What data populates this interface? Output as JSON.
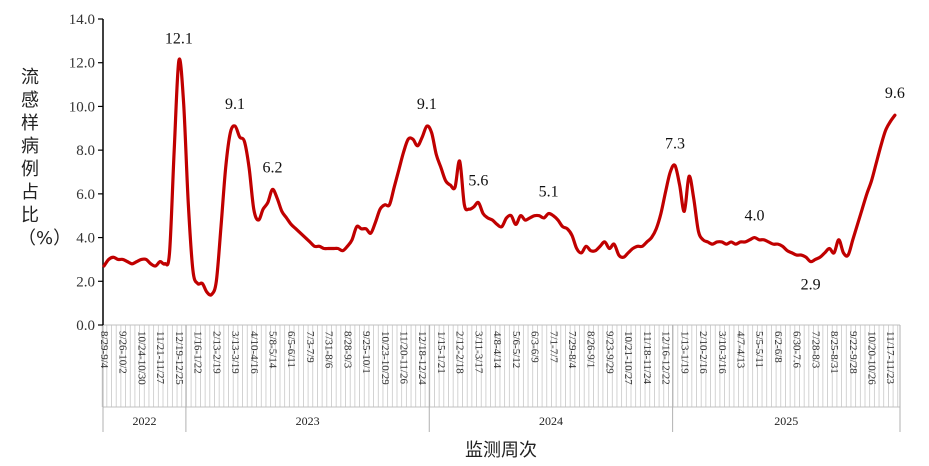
{
  "chart_data": {
    "type": "line",
    "title": "",
    "xlabel": "监测周次",
    "ylabel": "流感样病例占比（%）",
    "ylim": [
      0,
      14
    ],
    "yticks": [
      "0.0",
      "2.0",
      "4.0",
      "6.0",
      "8.0",
      "10.0",
      "12.0",
      "14.0"
    ],
    "grid": false,
    "line_color": "#C00000",
    "x_tick_labels": [
      "8/29-9/4",
      "9/26-10/2",
      "10/24-10/30",
      "11/21-11/27",
      "12/19-12/25",
      "1/16-1/22",
      "2/13-2/19",
      "3/13-3/19",
      "4/10-4/16",
      "5/8-5/14",
      "6/5-6/11",
      "7/3-7/9",
      "7/31-8/6",
      "8/28-9/3",
      "9/25-10/1",
      "10/23-10/29",
      "11/20-11/26",
      "12/18-12/24",
      "1/15-1/21",
      "2/12-2/18",
      "3/11-3/17",
      "4/8-4/14",
      "5/6-5/12",
      "6/3-6/9",
      "7/1-7/7",
      "7/29-8/4",
      "8/26-9/1",
      "9/23-9/29",
      "10/21-10/27",
      "11/18-11/24",
      "12/16-12/22",
      "1/13-1/19",
      "2/10-2/16",
      "3/10-3/16",
      "4/7-4/13",
      "5/5-5/11",
      "6/2-6/8",
      "6/30-7.6",
      "7/28-8/3",
      "8/25-8/31",
      "9/22-9/28",
      "10/20-10/26",
      "11/17-11/23"
    ],
    "years": [
      {
        "label": "2022",
        "start_week": 0,
        "end_week": 17
      },
      {
        "label": "2023",
        "start_week": 18,
        "end_week": 69
      },
      {
        "label": "2024",
        "start_week": 70,
        "end_week": 121
      },
      {
        "label": "2025",
        "start_week": 122,
        "end_week": 169
      }
    ],
    "values": [
      2.7,
      3.0,
      3.1,
      3.0,
      3.0,
      2.9,
      2.8,
      2.9,
      3.0,
      3.0,
      2.8,
      2.7,
      2.9,
      2.8,
      3.3,
      8.0,
      12.1,
      10.2,
      5.6,
      2.5,
      1.9,
      1.9,
      1.5,
      1.4,
      2.0,
      4.5,
      7.2,
      8.8,
      9.1,
      8.6,
      8.4,
      7.2,
      5.3,
      4.8,
      5.3,
      5.6,
      6.2,
      5.8,
      5.2,
      4.9,
      4.6,
      4.4,
      4.2,
      4.0,
      3.8,
      3.6,
      3.6,
      3.5,
      3.5,
      3.5,
      3.5,
      3.4,
      3.6,
      3.9,
      4.5,
      4.4,
      4.4,
      4.2,
      4.7,
      5.3,
      5.5,
      5.5,
      6.3,
      7.1,
      7.9,
      8.5,
      8.5,
      8.2,
      8.6,
      9.1,
      8.8,
      7.8,
      7.2,
      6.6,
      6.4,
      6.3,
      7.5,
      5.5,
      5.3,
      5.4,
      5.6,
      5.1,
      4.9,
      4.8,
      4.6,
      4.5,
      4.9,
      5.0,
      4.6,
      5.0,
      4.8,
      4.9,
      5.0,
      5.0,
      4.9,
      5.1,
      5.0,
      4.8,
      4.5,
      4.4,
      4.1,
      3.5,
      3.3,
      3.6,
      3.4,
      3.4,
      3.6,
      3.8,
      3.5,
      3.7,
      3.2,
      3.1,
      3.3,
      3.5,
      3.6,
      3.6,
      3.8,
      4.0,
      4.4,
      5.1,
      6.1,
      7.0,
      7.3,
      6.4,
      5.2,
      6.8,
      5.8,
      4.3,
      3.9,
      3.8,
      3.7,
      3.8,
      3.8,
      3.7,
      3.8,
      3.7,
      3.8,
      3.8,
      3.9,
      4.0,
      3.9,
      3.9,
      3.8,
      3.7,
      3.7,
      3.6,
      3.4,
      3.3,
      3.2,
      3.2,
      3.1,
      2.9,
      3.0,
      3.1,
      3.3,
      3.5,
      3.3,
      3.9,
      3.3,
      3.2,
      3.9,
      4.6,
      5.3,
      6.0,
      6.6,
      7.4,
      8.2,
      8.9,
      9.3,
      9.6
    ],
    "annotations": [
      {
        "week": 16,
        "text": "12.1"
      },
      {
        "week": 28,
        "text": "9.1"
      },
      {
        "week": 36,
        "text": "6.2"
      },
      {
        "week": 69,
        "text": "9.1"
      },
      {
        "week": 80,
        "text": "5.6"
      },
      {
        "week": 95,
        "text": "5.1"
      },
      {
        "week": 122,
        "text": "7.3"
      },
      {
        "week": 139,
        "text": "4.0"
      },
      {
        "week": 151,
        "text": "2.9",
        "position": "below"
      },
      {
        "week": 169,
        "text": "9.6"
      }
    ]
  }
}
